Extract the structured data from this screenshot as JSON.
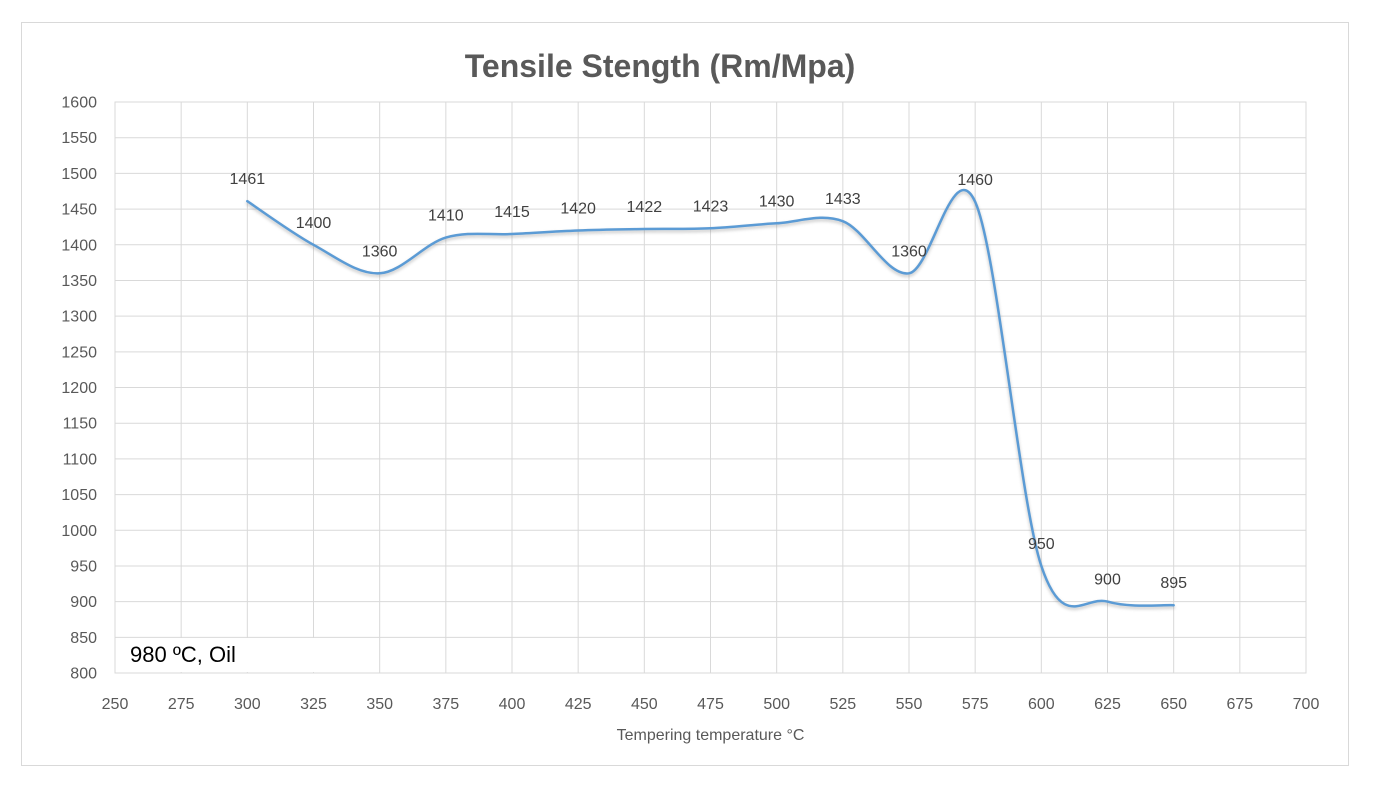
{
  "chart_data": {
    "type": "line",
    "title": "Tensile Stength (Rm/Mpa)",
    "xlabel": "Tempering temperature °C",
    "annotation": "980 ºC, Oil",
    "x": [
      300,
      325,
      350,
      375,
      400,
      425,
      450,
      475,
      500,
      525,
      550,
      575,
      600,
      625,
      650
    ],
    "values": [
      1461,
      1400,
      1360,
      1410,
      1415,
      1420,
      1422,
      1423,
      1430,
      1433,
      1360,
      1460,
      950,
      900,
      895
    ],
    "data_labels": [
      "1461",
      "1400",
      "1360",
      "1410",
      "1415",
      "1420",
      "1422",
      "1423",
      "1430",
      "1433",
      "1360",
      "1460",
      "950",
      "900",
      "895"
    ],
    "xlim": [
      250,
      700
    ],
    "ylim": [
      800,
      1600
    ],
    "x_tick_step": 25,
    "y_tick_step": 50,
    "x_ticks": [
      "250",
      "275",
      "300",
      "325",
      "350",
      "375",
      "400",
      "425",
      "450",
      "475",
      "500",
      "525",
      "550",
      "575",
      "600",
      "625",
      "650",
      "675",
      "700"
    ],
    "y_ticks": [
      "800",
      "850",
      "900",
      "950",
      "1000",
      "1050",
      "1100",
      "1150",
      "1200",
      "1250",
      "1300",
      "1350",
      "1400",
      "1450",
      "1500",
      "1550",
      "1600"
    ],
    "grid": true,
    "smooth_line": true,
    "legend_position": "none",
    "colors": {
      "line": "#5B9BD5",
      "grid": "#D9D9D9",
      "plot_border": "#D9D9D9",
      "chart_border": "#D9D9D9",
      "axis_text": "#595959",
      "title_text": "#595959",
      "data_label_text": "#404040",
      "annotation_text": "#000000",
      "background": "#FFFFFF"
    }
  }
}
